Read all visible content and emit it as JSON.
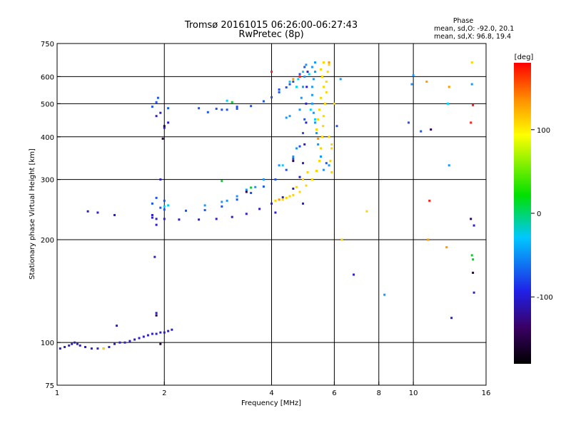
{
  "chart_data": {
    "type": "scatter",
    "title": "Tromsø 20161015 06:26:00-06:27:43",
    "subtitle": "RwPretec (8p)",
    "xlabel": "Frequency [MHz]",
    "ylabel": "Stationary phase Virtual Height [km]",
    "x_scale": "log",
    "y_scale": "log",
    "xlim": [
      1,
      16
    ],
    "ylim": [
      75,
      750
    ],
    "x_ticks": [
      1,
      2,
      4,
      6,
      8,
      10,
      16
    ],
    "y_ticks": [
      75,
      100,
      200,
      300,
      400,
      500,
      600,
      750
    ],
    "x_gridlines": [
      2,
      4,
      6,
      8,
      10
    ],
    "y_gridlines": [
      100,
      200,
      300,
      400,
      500,
      600
    ],
    "grid": true,
    "stats": {
      "title": "Phase",
      "o_line": "mean, sd,O: -92.0, 20.1",
      "x_line": "mean, sd,X:  96.8, 19.4"
    },
    "colorbar": {
      "label": "[deg]",
      "min": -180,
      "max": 180,
      "ticks": [
        100,
        0,
        -100
      ],
      "colors": [
        "#000000",
        "#3a0063",
        "#2020e6",
        "#00c8ff",
        "#00e000",
        "#ffff00",
        "#ff8c00",
        "#ff0000"
      ]
    },
    "series": [
      {
        "color": "#2a1ed0",
        "points": [
          [
            1.02,
            96
          ],
          [
            1.05,
            97
          ],
          [
            1.08,
            98
          ],
          [
            1.1,
            99
          ],
          [
            1.12,
            100
          ],
          [
            1.14,
            99
          ],
          [
            1.16,
            98
          ],
          [
            1.2,
            97
          ],
          [
            1.25,
            96
          ],
          [
            1.3,
            96
          ],
          [
            1.35,
            96
          ],
          [
            1.4,
            97
          ],
          [
            1.45,
            99
          ],
          [
            1.5,
            100
          ],
          [
            1.55,
            100
          ],
          [
            1.6,
            101
          ],
          [
            1.65,
            102
          ],
          [
            1.7,
            103
          ],
          [
            1.75,
            104
          ],
          [
            1.8,
            105
          ],
          [
            1.85,
            106
          ],
          [
            1.9,
            106
          ],
          [
            1.95,
            107
          ],
          [
            2.0,
            107
          ],
          [
            2.05,
            108
          ],
          [
            2.1,
            109
          ],
          [
            1.47,
            112
          ],
          [
            1.9,
            122
          ],
          [
            1.88,
            178
          ],
          [
            1.9,
            221
          ],
          [
            1.22,
            242
          ],
          [
            1.3,
            240
          ],
          [
            1.45,
            236
          ],
          [
            1.85,
            232
          ],
          [
            1.9,
            230
          ],
          [
            2.0,
            230
          ],
          [
            2.2,
            229
          ],
          [
            2.5,
            229
          ],
          [
            2.8,
            230
          ],
          [
            3.1,
            233
          ],
          [
            3.4,
            238
          ],
          [
            3.7,
            246
          ],
          [
            4.0,
            255
          ],
          [
            4.3,
            266
          ],
          [
            4.6,
            282
          ],
          [
            4.8,
            305
          ],
          [
            4.9,
            335
          ],
          [
            4.95,
            380
          ],
          [
            5.0,
            440
          ],
          [
            5.0,
            500
          ],
          [
            5.02,
            560
          ],
          [
            5.05,
            620
          ],
          [
            1.9,
            460
          ],
          [
            1.95,
            470
          ],
          [
            2.05,
            440
          ],
          [
            2.0,
            425
          ],
          [
            1.95,
            300
          ],
          [
            1.85,
            236
          ],
          [
            12.8,
            118
          ],
          [
            14.8,
            220
          ],
          [
            14.8,
            140
          ],
          [
            6.8,
            158
          ],
          [
            4.1,
            240
          ],
          [
            4.9,
            255
          ]
        ]
      },
      {
        "color": "#1f54ea",
        "points": [
          [
            1.85,
            255
          ],
          [
            1.95,
            248
          ],
          [
            2.0,
            245
          ],
          [
            2.3,
            243
          ],
          [
            2.6,
            244
          ],
          [
            2.9,
            250
          ],
          [
            3.2,
            262
          ],
          [
            3.5,
            274
          ],
          [
            3.8,
            286
          ],
          [
            4.1,
            300
          ],
          [
            4.4,
            320
          ],
          [
            4.6,
            345
          ],
          [
            4.8,
            375
          ],
          [
            4.9,
            410
          ],
          [
            4.95,
            450
          ],
          [
            1.85,
            490
          ],
          [
            1.9,
            505
          ],
          [
            2.05,
            485
          ],
          [
            2.5,
            485
          ],
          [
            2.8,
            483
          ],
          [
            3.0,
            480
          ],
          [
            3.2,
            483
          ],
          [
            3.5,
            492
          ],
          [
            3.8,
            508
          ],
          [
            4.0,
            522
          ],
          [
            4.2,
            540
          ],
          [
            4.4,
            558
          ],
          [
            4.6,
            580
          ],
          [
            4.8,
            610
          ],
          [
            4.95,
            640
          ],
          [
            3.2,
            490
          ],
          [
            4.2,
            550
          ],
          [
            1.9,
            265
          ],
          [
            2.0,
            260
          ],
          [
            1.92,
            520
          ],
          [
            10.5,
            415
          ],
          [
            9.7,
            440
          ],
          [
            6.1,
            430
          ],
          [
            5.7,
            335
          ],
          [
            2.65,
            472
          ],
          [
            2.9,
            480
          ],
          [
            4.5,
            570
          ]
        ]
      },
      {
        "color": "#1a96ff",
        "points": [
          [
            2.6,
            252
          ],
          [
            2.9,
            258
          ],
          [
            3.2,
            268
          ],
          [
            3.4,
            280
          ],
          [
            3.8,
            300
          ],
          [
            4.2,
            330
          ],
          [
            4.6,
            350
          ],
          [
            4.7,
            370
          ],
          [
            4.8,
            480
          ],
          [
            4.85,
            520
          ],
          [
            4.9,
            560
          ],
          [
            4.95,
            600
          ],
          [
            5.0,
            650
          ],
          [
            5.3,
            620
          ],
          [
            5.25,
            590
          ],
          [
            5.2,
            560
          ],
          [
            5.2,
            530
          ],
          [
            5.2,
            500
          ],
          [
            5.25,
            470
          ],
          [
            5.3,
            440
          ],
          [
            5.35,
            410
          ],
          [
            5.4,
            380
          ],
          [
            5.5,
            350
          ],
          [
            5.6,
            320
          ],
          [
            5.8,
            330
          ],
          [
            5.2,
            640
          ],
          [
            5.3,
            660
          ],
          [
            3.0,
            260
          ],
          [
            3.6,
            285
          ],
          [
            4.4,
            455
          ],
          [
            4.5,
            460
          ],
          [
            10.0,
            605
          ],
          [
            9.9,
            570
          ],
          [
            14.6,
            570
          ],
          [
            8.3,
            138
          ],
          [
            12.6,
            330
          ],
          [
            6.25,
            590
          ]
        ]
      },
      {
        "color": "#00d2ff",
        "points": [
          [
            4.5,
            580
          ],
          [
            4.7,
            560
          ],
          [
            4.75,
            590
          ],
          [
            4.9,
            620
          ],
          [
            5.1,
            610
          ],
          [
            3.0,
            510
          ],
          [
            2.0,
            250
          ],
          [
            2.05,
            252
          ],
          [
            12.5,
            500
          ],
          [
            4.3,
            330
          ],
          [
            5.15,
            480
          ],
          [
            5.3,
            450
          ]
        ]
      },
      {
        "color": "#10c830",
        "points": [
          [
            3.1,
            505
          ],
          [
            2.9,
            297
          ],
          [
            3.5,
            284
          ],
          [
            14.6,
            180
          ],
          [
            14.7,
            175
          ]
        ]
      },
      {
        "color": "#ffd400",
        "points": [
          [
            4.1,
            260
          ],
          [
            4.3,
            262
          ],
          [
            4.5,
            268
          ],
          [
            4.8,
            276
          ],
          [
            5.0,
            288
          ],
          [
            5.2,
            300
          ],
          [
            5.35,
            318
          ],
          [
            5.45,
            340
          ],
          [
            5.5,
            370
          ],
          [
            5.55,
            400
          ],
          [
            5.58,
            430
          ],
          [
            5.6,
            460
          ],
          [
            5.65,
            500
          ],
          [
            5.7,
            540
          ],
          [
            5.7,
            580
          ],
          [
            5.75,
            620
          ],
          [
            5.8,
            650
          ],
          [
            5.5,
            630
          ],
          [
            5.55,
            600
          ],
          [
            5.6,
            560
          ],
          [
            5.5,
            520
          ],
          [
            5.45,
            480
          ],
          [
            5.4,
            450
          ],
          [
            5.35,
            420
          ],
          [
            5.8,
            400
          ],
          [
            5.9,
            370
          ],
          [
            5.85,
            340
          ],
          [
            5.9,
            315
          ],
          [
            5.9,
            380
          ],
          [
            4.6,
            270
          ],
          [
            4.4,
            265
          ],
          [
            4.7,
            285
          ],
          [
            4.9,
            300
          ],
          [
            5.05,
            315
          ],
          [
            5.6,
            660
          ],
          [
            7.4,
            242
          ],
          [
            6.3,
            200
          ],
          [
            14.6,
            660
          ],
          [
            6.0,
            500
          ],
          [
            1.35,
            96
          ]
        ]
      },
      {
        "color": "#ff9a00",
        "points": [
          [
            4.6,
            590
          ],
          [
            5.8,
            660
          ],
          [
            11.0,
            200
          ],
          [
            12.4,
            190
          ],
          [
            12.6,
            560
          ],
          [
            10.9,
            580
          ],
          [
            5.4,
            395
          ],
          [
            4.2,
            262
          ]
        ]
      },
      {
        "color": "#ff2020",
        "points": [
          [
            4.0,
            620
          ],
          [
            4.8,
            600
          ],
          [
            11.1,
            260
          ],
          [
            14.7,
            495
          ],
          [
            14.5,
            440
          ]
        ]
      },
      {
        "color": "#2a0050",
        "points": [
          [
            1.9,
            120
          ],
          [
            1.95,
            99
          ],
          [
            2.0,
            430
          ],
          [
            1.98,
            395
          ],
          [
            3.4,
            276
          ],
          [
            4.6,
            340
          ],
          [
            14.7,
            160
          ],
          [
            11.2,
            420
          ],
          [
            14.5,
            230
          ]
        ]
      }
    ]
  }
}
